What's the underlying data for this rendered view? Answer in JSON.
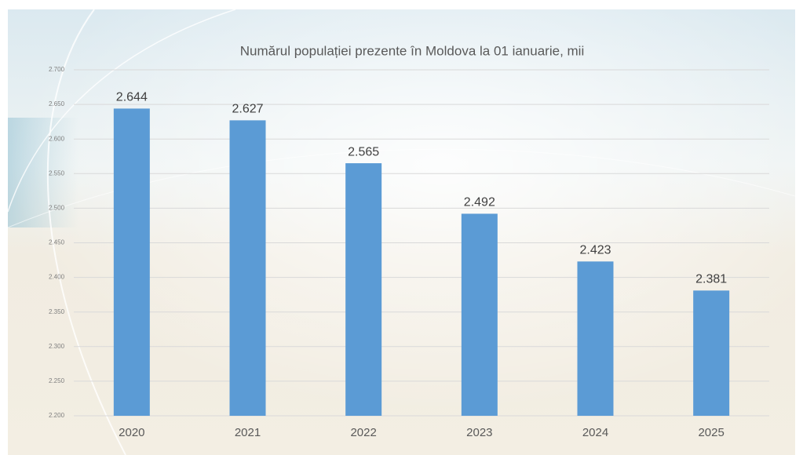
{
  "chart_data": {
    "type": "bar",
    "title": "Numărul populației prezente în Moldova la 01 ianuarie, mii",
    "categories": [
      "2020",
      "2021",
      "2022",
      "2023",
      "2024",
      "2025"
    ],
    "values": [
      2644,
      2627,
      2565,
      2492,
      2423,
      2381
    ],
    "value_labels": [
      "2.644",
      "2.627",
      "2.565",
      "2.492",
      "2.423",
      "2.381"
    ],
    "color": "#5b9bd5",
    "ylim": [
      2200,
      2700
    ],
    "yticks": [
      {
        "value": 2200,
        "label": "2.200"
      },
      {
        "value": 2250,
        "label": "2.250"
      },
      {
        "value": 2300,
        "label": "2.300"
      },
      {
        "value": 2350,
        "label": "2.350"
      },
      {
        "value": 2400,
        "label": "2.400"
      },
      {
        "value": 2450,
        "label": "2.450"
      },
      {
        "value": 2500,
        "label": "2.500"
      },
      {
        "value": 2550,
        "label": "2.550"
      },
      {
        "value": 2600,
        "label": "2.600"
      },
      {
        "value": 2650,
        "label": "2.650"
      },
      {
        "value": 2700,
        "label": "2.700"
      }
    ],
    "grid": true
  }
}
